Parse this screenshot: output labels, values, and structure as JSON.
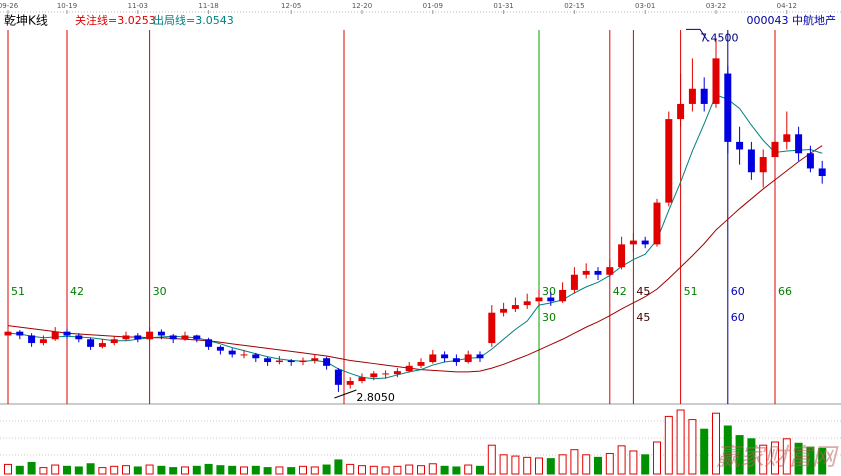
{
  "chart_data": {
    "type": "candlestick",
    "title": "乾坤K线",
    "indicator_1": "关注线=3.0253",
    "indicator_2": "出局线=3.0543",
    "stock": "000043 中航地产",
    "watermark": "赢家财富网",
    "high_label": "7.4500",
    "low_label": "2.8050",
    "up_color": "#e00000",
    "down_color": "#0000e0",
    "vol_down_color": "#009000",
    "ma_short_color": "#008080",
    "ma_long_color": "#a00000",
    "ylim": [
      2.7,
      7.6
    ],
    "x": [
      "09-26",
      null,
      null,
      null,
      null,
      "10-19",
      null,
      null,
      null,
      null,
      null,
      "11-03",
      null,
      null,
      null,
      null,
      null,
      "11-18",
      null,
      null,
      null,
      null,
      null,
      null,
      "12-05",
      null,
      null,
      null,
      null,
      null,
      "12-20",
      null,
      null,
      null,
      null,
      null,
      "01-09",
      null,
      null,
      null,
      null,
      null,
      "01-31",
      null,
      null,
      null,
      null,
      null,
      "02-15",
      null,
      null,
      null,
      null,
      null,
      "03-01",
      null,
      null,
      null,
      null,
      null,
      "03-22",
      null,
      null,
      null,
      null,
      null,
      "04-12",
      null,
      null,
      null
    ],
    "candles": [
      [
        3.55,
        3.65,
        3.5,
        3.6
      ],
      [
        3.6,
        3.62,
        3.5,
        3.55
      ],
      [
        3.55,
        3.58,
        3.4,
        3.45
      ],
      [
        3.45,
        3.55,
        3.42,
        3.5
      ],
      [
        3.5,
        3.66,
        3.48,
        3.6
      ],
      [
        3.6,
        3.64,
        3.5,
        3.55
      ],
      [
        3.55,
        3.58,
        3.46,
        3.5
      ],
      [
        3.5,
        3.52,
        3.36,
        3.4
      ],
      [
        3.4,
        3.5,
        3.38,
        3.45
      ],
      [
        3.45,
        3.54,
        3.42,
        3.5
      ],
      [
        3.5,
        3.6,
        3.48,
        3.55
      ],
      [
        3.55,
        3.58,
        3.46,
        3.5
      ],
      [
        3.5,
        3.66,
        3.48,
        3.6
      ],
      [
        3.6,
        3.63,
        3.5,
        3.55
      ],
      [
        3.55,
        3.57,
        3.45,
        3.5
      ],
      [
        3.5,
        3.6,
        3.48,
        3.55
      ],
      [
        3.55,
        3.56,
        3.46,
        3.5
      ],
      [
        3.5,
        3.52,
        3.36,
        3.4
      ],
      [
        3.4,
        3.42,
        3.3,
        3.35
      ],
      [
        3.35,
        3.38,
        3.26,
        3.3
      ],
      [
        3.3,
        3.36,
        3.25,
        3.3
      ],
      [
        3.3,
        3.32,
        3.2,
        3.25
      ],
      [
        3.25,
        3.27,
        3.15,
        3.2
      ],
      [
        3.2,
        3.28,
        3.17,
        3.22
      ],
      [
        3.22,
        3.24,
        3.15,
        3.2
      ],
      [
        3.2,
        3.26,
        3.16,
        3.22
      ],
      [
        3.22,
        3.3,
        3.18,
        3.25
      ],
      [
        3.25,
        3.27,
        3.1,
        3.15
      ],
      [
        3.1,
        3.12,
        2.805,
        2.9
      ],
      [
        2.9,
        3.0,
        2.85,
        2.95
      ],
      [
        2.95,
        3.05,
        2.92,
        3.0
      ],
      [
        3.0,
        3.08,
        2.96,
        3.05
      ],
      [
        3.05,
        3.09,
        2.98,
        3.05
      ],
      [
        3.04,
        3.12,
        3.0,
        3.08
      ],
      [
        3.08,
        3.2,
        3.06,
        3.15
      ],
      [
        3.15,
        3.25,
        3.12,
        3.2
      ],
      [
        3.2,
        3.36,
        3.18,
        3.3
      ],
      [
        3.3,
        3.34,
        3.2,
        3.25
      ],
      [
        3.25,
        3.3,
        3.15,
        3.2
      ],
      [
        3.2,
        3.35,
        3.18,
        3.3
      ],
      [
        3.3,
        3.34,
        3.2,
        3.25
      ],
      [
        3.45,
        3.95,
        3.4,
        3.85
      ],
      [
        3.85,
        3.98,
        3.8,
        3.9
      ],
      [
        3.9,
        4.05,
        3.86,
        3.95
      ],
      [
        3.95,
        4.1,
        3.9,
        4.0
      ],
      [
        4.0,
        4.15,
        3.95,
        4.05
      ],
      [
        4.05,
        4.12,
        3.94,
        4.0
      ],
      [
        4.0,
        4.25,
        3.98,
        4.15
      ],
      [
        4.15,
        4.45,
        4.1,
        4.35
      ],
      [
        4.35,
        4.5,
        4.3,
        4.4
      ],
      [
        4.4,
        4.45,
        4.28,
        4.35
      ],
      [
        4.35,
        4.55,
        4.32,
        4.45
      ],
      [
        4.45,
        4.85,
        4.42,
        4.75
      ],
      [
        4.75,
        4.9,
        4.65,
        4.8
      ],
      [
        4.8,
        4.85,
        4.7,
        4.75
      ],
      [
        4.75,
        5.35,
        4.72,
        5.3
      ],
      [
        5.3,
        6.5,
        5.25,
        6.4
      ],
      [
        6.4,
        7.0,
        6.3,
        6.6
      ],
      [
        6.6,
        7.2,
        6.5,
        6.8
      ],
      [
        6.8,
        6.95,
        6.5,
        6.6
      ],
      [
        6.6,
        7.45,
        6.55,
        7.2
      ],
      [
        7.0,
        7.1,
        5.95,
        6.1
      ],
      [
        6.1,
        6.3,
        5.8,
        6.0
      ],
      [
        6.0,
        6.1,
        5.6,
        5.7
      ],
      [
        5.7,
        6.0,
        5.5,
        5.9
      ],
      [
        5.9,
        6.3,
        5.8,
        6.1
      ],
      [
        6.1,
        6.5,
        6.0,
        6.2
      ],
      [
        6.2,
        6.3,
        5.85,
        5.95
      ],
      [
        5.95,
        6.05,
        5.7,
        5.75
      ],
      [
        5.75,
        5.85,
        5.55,
        5.65
      ]
    ],
    "ma_short": [
      3.58,
      3.57,
      3.54,
      3.52,
      3.53,
      3.54,
      3.53,
      3.52,
      3.5,
      3.48,
      3.48,
      3.5,
      3.52,
      3.53,
      3.54,
      3.53,
      3.52,
      3.48,
      3.44,
      3.39,
      3.35,
      3.31,
      3.27,
      3.24,
      3.22,
      3.21,
      3.22,
      3.2,
      3.11,
      3.05,
      3.0,
      2.98,
      2.99,
      3.03,
      3.07,
      3.1,
      3.16,
      3.2,
      3.22,
      3.25,
      3.26,
      3.37,
      3.5,
      3.63,
      3.74,
      3.95,
      3.98,
      4.02,
      4.11,
      4.19,
      4.25,
      4.34,
      4.46,
      4.55,
      4.62,
      4.81,
      5.2,
      5.57,
      5.98,
      6.34,
      6.72,
      6.66,
      6.54,
      6.32,
      6.12,
      5.96,
      5.98,
      5.99,
      6.0,
      5.95
    ],
    "ma_long": [
      3.68,
      3.66,
      3.64,
      3.62,
      3.6,
      3.58,
      3.57,
      3.56,
      3.55,
      3.54,
      3.53,
      3.53,
      3.52,
      3.52,
      3.51,
      3.5,
      3.49,
      3.48,
      3.46,
      3.44,
      3.42,
      3.4,
      3.38,
      3.36,
      3.34,
      3.32,
      3.3,
      3.28,
      3.25,
      3.22,
      3.2,
      3.18,
      3.16,
      3.14,
      3.12,
      3.1,
      3.09,
      3.08,
      3.07,
      3.07,
      3.08,
      3.12,
      3.17,
      3.23,
      3.29,
      3.36,
      3.43,
      3.5,
      3.58,
      3.66,
      3.73,
      3.81,
      3.9,
      3.98,
      4.06,
      4.16,
      4.3,
      4.45,
      4.6,
      4.76,
      4.94,
      5.08,
      5.22,
      5.35,
      5.48,
      5.6,
      5.72,
      5.84,
      5.95,
      6.05
    ],
    "volume": [
      15,
      12,
      18,
      10,
      14,
      12,
      11,
      16,
      10,
      12,
      13,
      11,
      14,
      12,
      10,
      11,
      12,
      15,
      13,
      12,
      11,
      12,
      10,
      11,
      10,
      12,
      11,
      14,
      22,
      15,
      13,
      12,
      11,
      12,
      14,
      13,
      16,
      12,
      11,
      14,
      12,
      45,
      30,
      28,
      26,
      25,
      24,
      30,
      38,
      30,
      26,
      32,
      44,
      36,
      30,
      50,
      90,
      100,
      85,
      70,
      95,
      75,
      60,
      55,
      45,
      50,
      55,
      48,
      42,
      40
    ],
    "signals": [
      {
        "labels": [
          51
        ],
        "color": "#e00000",
        "label_color": "#008000"
      },
      null,
      null,
      null,
      null,
      {
        "labels": [
          42
        ],
        "color": "#e00000",
        "label_color": "#008000"
      },
      null,
      null,
      null,
      null,
      null,
      null,
      {
        "labels": [
          30
        ],
        "color": "#e00000",
        "label_color": "#008000"
      },
      null,
      null,
      null,
      null,
      null,
      null,
      null,
      null,
      null,
      null,
      null,
      null,
      null,
      null,
      null,
      null,
      null,
      null,
      null,
      null,
      null,
      null,
      null,
      null,
      null,
      null,
      null,
      null,
      null,
      null,
      null,
      null,
      {
        "labels": [
          30,
          30
        ],
        "color": "#00a000",
        "label_color": "#008000"
      },
      null,
      null,
      null,
      null,
      null,
      {
        "labels": [
          42
        ],
        "color": "#e00000",
        "label_color": "#008000"
      },
      null,
      {
        "labels": [
          45,
          45
        ],
        "color": "#e00000",
        "label_color": "#400000"
      },
      null,
      null,
      null,
      {
        "labels": [
          51
        ],
        "color": "#e00000",
        "label_color": "#008000"
      },
      null,
      null,
      null,
      {
        "labels": [
          60,
          60
        ],
        "color": "#000080",
        "label_color": "#0000c0"
      },
      null,
      null,
      null,
      {
        "labels": [
          66
        ],
        "color": "#e00000",
        "label_color": "#008000"
      },
      null,
      null,
      null,
      null
    ]
  }
}
